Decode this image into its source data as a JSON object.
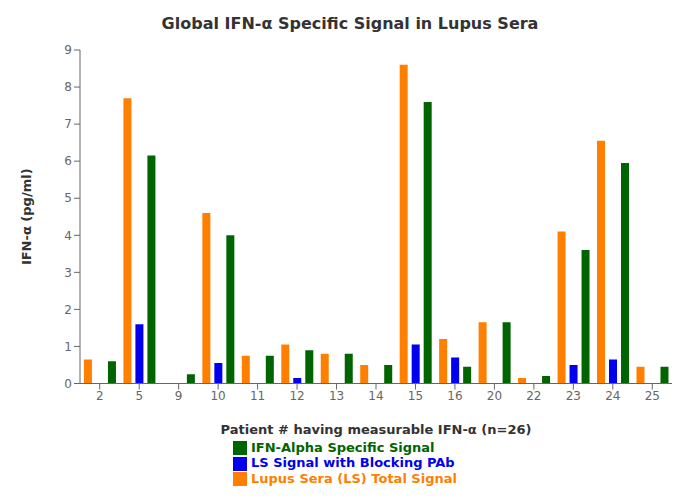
{
  "chart_data": {
    "type": "bar",
    "title": "Global IFN-α Specific Signal in Lupus Sera",
    "xlabel": "Patient # having measurable IFN-α (n=26)",
    "ylabel": "IFN-α (pg/ml)",
    "categories": [
      "2",
      "5",
      "9",
      "10",
      "11",
      "12",
      "13",
      "14",
      "15",
      "16",
      "20",
      "22",
      "23",
      "24",
      "25"
    ],
    "series": [
      {
        "name": "Lupus Sera (LS) Total Signal",
        "color": "#FF8000",
        "values": [
          0.65,
          7.7,
          0.0,
          4.6,
          0.75,
          1.05,
          0.8,
          0.5,
          8.6,
          1.2,
          1.65,
          0.15,
          4.1,
          6.55,
          0.45
        ]
      },
      {
        "name": "LS Signal with Blocking PAb",
        "color": "#0000EE",
        "values": [
          0.0,
          1.6,
          0.0,
          0.55,
          0.0,
          0.15,
          0.0,
          0.0,
          1.05,
          0.7,
          0.0,
          0.0,
          0.5,
          0.65,
          0.0
        ]
      },
      {
        "name": "IFN-Alpha Specific Signal",
        "color": "#006400",
        "values": [
          0.6,
          6.15,
          0.25,
          4.0,
          0.75,
          0.9,
          0.8,
          0.5,
          7.6,
          0.45,
          1.65,
          0.2,
          3.6,
          5.95,
          0.45
        ]
      }
    ],
    "ylim": [
      0,
      9
    ],
    "yticks": [
      0,
      1,
      2,
      3,
      4,
      5,
      6,
      7,
      8,
      9
    ],
    "grid": false,
    "legend": "lower center"
  }
}
